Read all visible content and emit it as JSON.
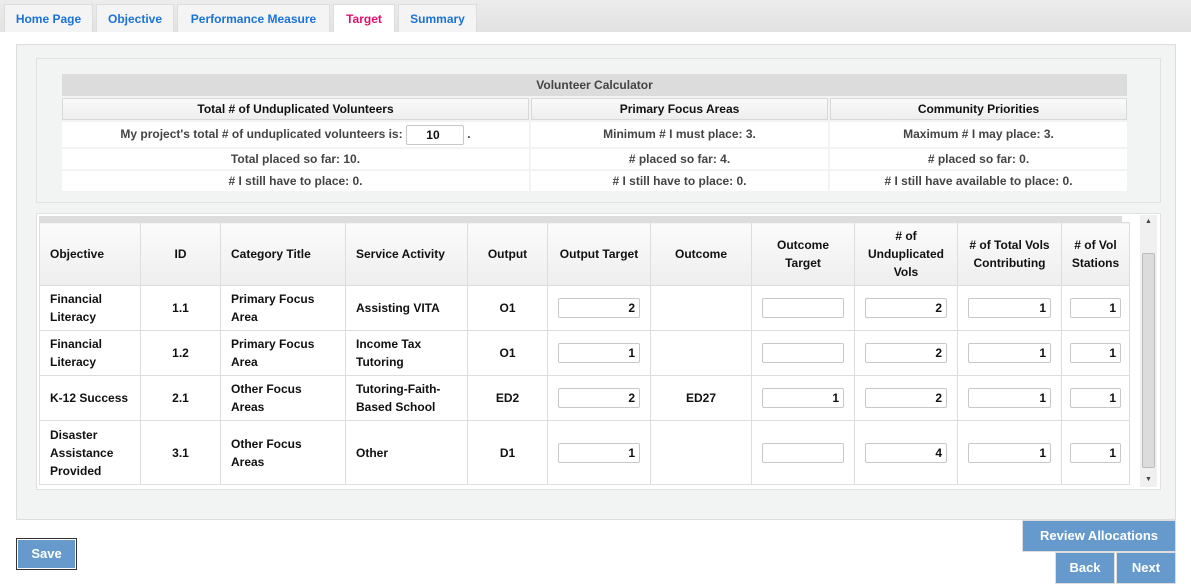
{
  "tabs": [
    "Home Page",
    "Objective",
    "Performance Measure",
    "Target",
    "Summary"
  ],
  "active_tab": "Target",
  "calculator": {
    "title": "Volunteer Calculator",
    "headers": [
      "Total # of Unduplicated Volunteers",
      "Primary Focus Areas",
      "Community Priorities"
    ],
    "total_label": "My project's total # of unduplicated volunteers is:",
    "total_value": "10",
    "rows": [
      [
        "",
        "Minimum # I must place: 3.",
        "Maximum # I may place: 3."
      ],
      [
        "Total placed so far: 10.",
        "# placed so far: 4.",
        "# placed so far: 0."
      ],
      [
        "# I still have to place: 0.",
        "# I still have to place: 0.",
        "# I still have available to place: 0."
      ]
    ]
  },
  "grid": {
    "headers": [
      "Objective",
      "ID",
      "Category Title",
      "Service Activity",
      "Output",
      "Output Target",
      "Outcome",
      "Outcome Target",
      "# of Unduplicated Vols",
      "# of Total Vols Contributing",
      "# of Vol Stations"
    ],
    "rows": [
      {
        "objective": "Financial Literacy",
        "id": "1.1",
        "category": "Primary Focus Area",
        "activity": "Assisting VITA",
        "output": "O1",
        "output_target": "2",
        "outcome": "",
        "outcome_target": "",
        "unduplicated": "2",
        "total_vols": "1",
        "stations": "1"
      },
      {
        "objective": "Financial Literacy",
        "id": "1.2",
        "category": "Primary Focus Area",
        "activity": "Income Tax Tutoring",
        "output": "O1",
        "output_target": "1",
        "outcome": "",
        "outcome_target": "",
        "unduplicated": "2",
        "total_vols": "1",
        "stations": "1"
      },
      {
        "objective": "K-12 Success",
        "id": "2.1",
        "category": "Other Focus Areas",
        "activity": "Tutoring-Faith-Based School",
        "output": "ED2",
        "output_target": "2",
        "outcome": "ED27",
        "outcome_target": "1",
        "unduplicated": "2",
        "total_vols": "1",
        "stations": "1"
      },
      {
        "objective": "Disaster Assistance Provided",
        "id": "3.1",
        "category": "Other Focus Areas",
        "activity": "Other",
        "output": "D1",
        "output_target": "1",
        "outcome": "",
        "outcome_target": "",
        "unduplicated": "4",
        "total_vols": "1",
        "stations": "1"
      }
    ]
  },
  "buttons": {
    "save": "Save",
    "review": "Review Allocations",
    "back": "Back",
    "next": "Next"
  },
  "colors": {
    "accent": "#6699cc",
    "active_tab": "#e0106f",
    "tab_text": "#1a73d8"
  }
}
